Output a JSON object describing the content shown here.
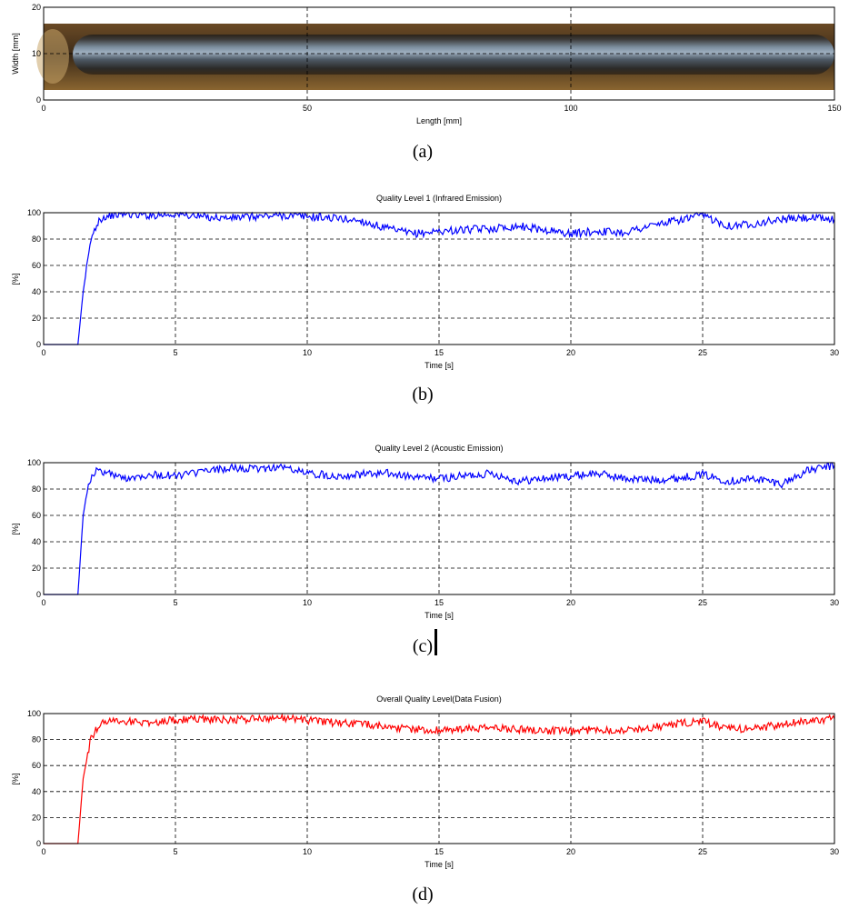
{
  "captions": [
    "(a)",
    "(b)",
    "(c)",
    "(d)"
  ],
  "chart_data": [
    {
      "type": "image_plot",
      "xlabel": "Length [mm]",
      "ylabel": "Width [mm]",
      "xlim": [
        0,
        150
      ],
      "ylim": [
        0,
        20
      ],
      "xticks": [
        0,
        50,
        100,
        150
      ],
      "yticks": [
        0,
        10,
        20
      ],
      "grid": true,
      "image_extent": {
        "x": [
          0,
          150
        ],
        "y": [
          3,
          17
        ]
      }
    },
    {
      "type": "line",
      "title": "Quality Level 1 (Infrared Emission)",
      "xlabel": "Time [s]",
      "ylabel": "[%]",
      "xlim": [
        0,
        30
      ],
      "ylim": [
        0,
        100
      ],
      "xticks": [
        0,
        5,
        10,
        15,
        20,
        25,
        30
      ],
      "yticks": [
        0,
        20,
        40,
        60,
        80,
        100
      ],
      "grid": true,
      "color": "#0000ff",
      "x": [
        0,
        1.3,
        1.5,
        1.8,
        2.1,
        2.5,
        3,
        4,
        5,
        6,
        7,
        8,
        9,
        10,
        11,
        12,
        13,
        14,
        15,
        16,
        17,
        18,
        19,
        20,
        21,
        22,
        23,
        24,
        25,
        26,
        27,
        28,
        29,
        30
      ],
      "values": [
        0,
        0,
        40,
        80,
        95,
        98,
        99,
        98,
        99,
        97,
        96,
        97,
        98,
        97,
        96,
        94,
        88,
        84,
        86,
        87,
        88,
        90,
        87,
        84,
        86,
        85,
        90,
        94,
        98,
        90,
        92,
        95,
        96,
        95
      ]
    },
    {
      "type": "line",
      "title": "Quality Level 2 (Acoustic Emission)",
      "xlabel": "Time [s]",
      "ylabel": "[%]",
      "xlim": [
        0,
        30
      ],
      "ylim": [
        0,
        100
      ],
      "xticks": [
        0,
        5,
        10,
        15,
        20,
        25,
        30
      ],
      "yticks": [
        0,
        20,
        40,
        60,
        80,
        100
      ],
      "grid": true,
      "color": "#0000ff",
      "x": [
        0,
        1.3,
        1.5,
        1.7,
        2,
        2.5,
        3,
        4,
        5,
        6,
        7,
        8,
        9,
        10,
        11,
        12,
        13,
        14,
        15,
        16,
        17,
        18,
        19,
        20,
        21,
        22,
        23,
        24,
        25,
        26,
        27,
        28,
        29,
        30
      ],
      "values": [
        0,
        0,
        60,
        85,
        94,
        92,
        88,
        91,
        90,
        93,
        96,
        95,
        97,
        92,
        90,
        91,
        92,
        89,
        88,
        90,
        92,
        86,
        88,
        90,
        92,
        88,
        87,
        88,
        91,
        86,
        88,
        84,
        94,
        98
      ]
    },
    {
      "type": "line",
      "title": "Overall Quality Level(Data Fusion)",
      "xlabel": "Time [s]",
      "ylabel": "[%]",
      "xlim": [
        0,
        30
      ],
      "ylim": [
        0,
        100
      ],
      "xticks": [
        0,
        5,
        10,
        15,
        20,
        25,
        30
      ],
      "yticks": [
        0,
        20,
        40,
        60,
        80,
        100
      ],
      "grid": true,
      "color": "#ff0000",
      "x": [
        0,
        1.3,
        1.5,
        1.8,
        2.2,
        2.6,
        3,
        4,
        5,
        6,
        7,
        8,
        9,
        10,
        11,
        12,
        13,
        14,
        15,
        16,
        17,
        18,
        19,
        20,
        21,
        22,
        23,
        24,
        25,
        26,
        27,
        28,
        29,
        30
      ],
      "values": [
        0,
        0,
        50,
        82,
        93,
        95,
        94,
        93,
        95,
        96,
        95,
        96,
        97,
        95,
        93,
        92,
        90,
        88,
        87,
        88,
        89,
        88,
        87,
        86,
        88,
        87,
        89,
        92,
        94,
        88,
        89,
        91,
        95,
        96
      ]
    }
  ]
}
